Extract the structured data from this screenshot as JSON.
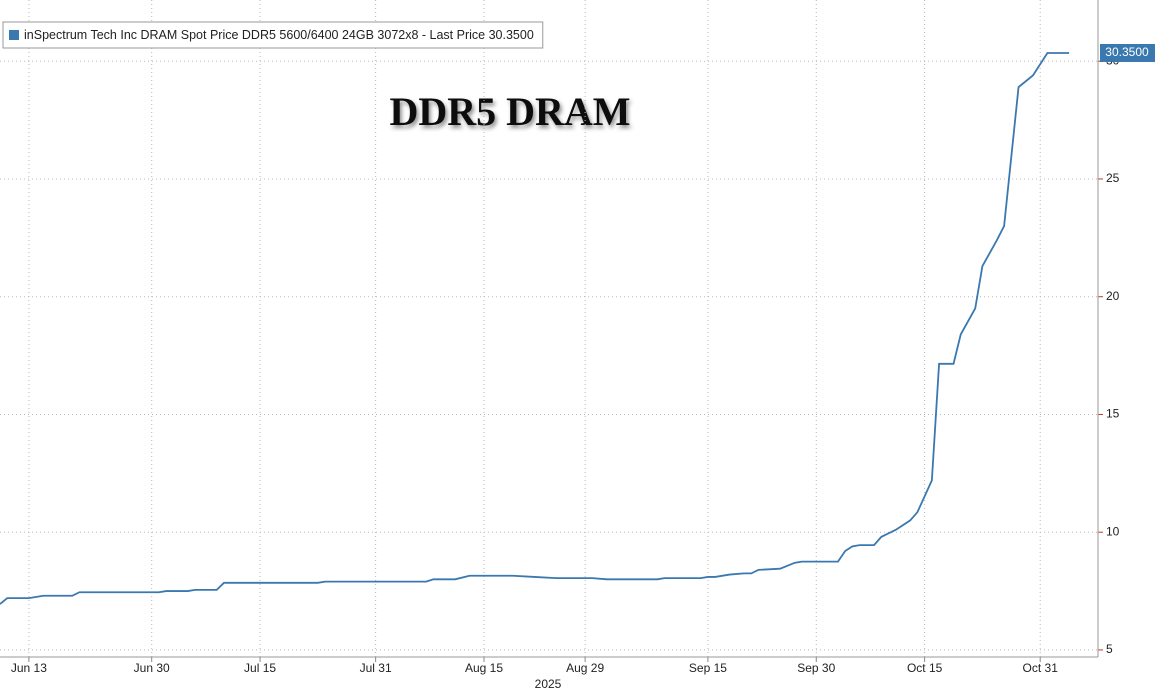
{
  "chart_data": {
    "type": "line",
    "title": "DDR5 DRAM",
    "x_label": "2025",
    "x": [
      "2025-06-09",
      "2025-06-10",
      "2025-06-13",
      "2025-06-15",
      "2025-06-19",
      "2025-06-20",
      "2025-07-01",
      "2025-07-02",
      "2025-07-05",
      "2025-07-06",
      "2025-07-09",
      "2025-07-10",
      "2025-07-23",
      "2025-07-24",
      "2025-08-07",
      "2025-08-08",
      "2025-08-11",
      "2025-08-13",
      "2025-08-19",
      "2025-08-22",
      "2025-08-25",
      "2025-08-30",
      "2025-09-01",
      "2025-09-08",
      "2025-09-09",
      "2025-09-14",
      "2025-09-15",
      "2025-09-16",
      "2025-09-18",
      "2025-09-20",
      "2025-09-21",
      "2025-09-22",
      "2025-09-25",
      "2025-09-27",
      "2025-09-28",
      "2025-10-03",
      "2025-10-04",
      "2025-10-05",
      "2025-10-06",
      "2025-10-08",
      "2025-10-09",
      "2025-10-10",
      "2025-10-11",
      "2025-10-13",
      "2025-10-14",
      "2025-10-16",
      "2025-10-17",
      "2025-10-19",
      "2025-10-20",
      "2025-10-22",
      "2025-10-23",
      "2025-10-25",
      "2025-10-26",
      "2025-10-28",
      "2025-10-30",
      "2025-11-01",
      "2025-11-04"
    ],
    "series": [
      {
        "name": "inSpectrum Tech Inc DRAM Spot Price DDR5 5600/6400 24GB 3072x8 - Last Price 30.3500",
        "color": "#3a78b0",
        "values": [
          6.95,
          7.2,
          7.2,
          7.3,
          7.3,
          7.45,
          7.45,
          7.5,
          7.5,
          7.55,
          7.55,
          7.85,
          7.85,
          7.9,
          7.9,
          8.0,
          8.0,
          8.15,
          8.15,
          8.1,
          8.05,
          8.05,
          8.0,
          8.0,
          8.05,
          8.05,
          8.1,
          8.1,
          8.2,
          8.25,
          8.25,
          8.4,
          8.45,
          8.7,
          8.75,
          8.75,
          9.2,
          9.4,
          9.45,
          9.45,
          9.8,
          9.95,
          10.1,
          10.5,
          10.85,
          12.2,
          17.15,
          17.15,
          18.4,
          19.5,
          21.3,
          22.4,
          23.0,
          28.9,
          29.4,
          30.35,
          30.35
        ]
      }
    ],
    "annotation": {
      "value": 30.35,
      "label": "30.3500",
      "color": "#3a78b0"
    },
    "xlim": [
      "2025-06-09",
      "2025-11-08"
    ],
    "xticks": [
      {
        "value": "2025-06-13",
        "label": "Jun 13"
      },
      {
        "value": "2025-06-30",
        "label": "Jun 30"
      },
      {
        "value": "2025-07-15",
        "label": "Jul 15"
      },
      {
        "value": "2025-07-31",
        "label": "Jul 31"
      },
      {
        "value": "2025-08-15",
        "label": "Aug 15"
      },
      {
        "value": "2025-08-29",
        "label": "Aug 29"
      },
      {
        "value": "2025-09-15",
        "label": "Sep 15"
      },
      {
        "value": "2025-09-30",
        "label": "Sep 30"
      },
      {
        "value": "2025-10-15",
        "label": "Oct 15"
      },
      {
        "value": "2025-10-31",
        "label": "Oct 31"
      }
    ],
    "ylim": [
      4.7,
      32.6
    ],
    "yticks": [
      5,
      10,
      15,
      20,
      25,
      30
    ],
    "grid": true,
    "legend": "top-left"
  }
}
